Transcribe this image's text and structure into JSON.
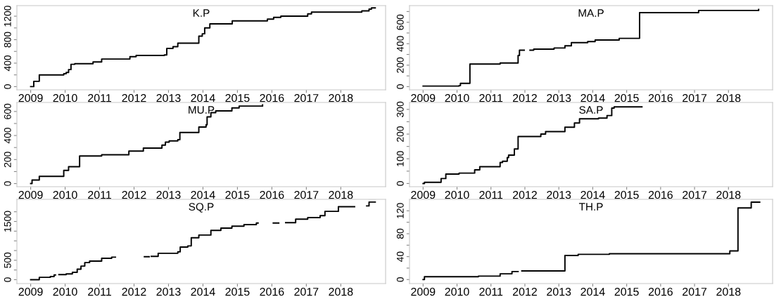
{
  "chart_data": [
    {
      "type": "step",
      "title": "K.P",
      "color": "#000000",
      "xlim": [
        2008.6,
        2019.3
      ],
      "xticks": [
        2009,
        2010,
        2011,
        2012,
        2013,
        2014,
        2015,
        2016,
        2017,
        2018
      ],
      "ylim": [
        -55,
        1380
      ],
      "yticks": [
        0,
        {
          "value": 200,
          "label": null
        },
        400,
        {
          "value": 600,
          "label": null
        },
        800,
        {
          "value": 1000,
          "label": null
        },
        1200
      ],
      "grid": false,
      "legend": false,
      "x": [
        2009.0,
        2009.09,
        2009.25,
        2009.96,
        2010.03,
        2010.1,
        2010.17,
        2010.28,
        2010.81,
        2011.06,
        2011.88,
        2012.06,
        2012.88,
        2012.95,
        2013.13,
        2013.27,
        2013.88,
        2013.98,
        2014.05,
        2014.2,
        2014.85,
        2015.87,
        2016.05,
        2016.26,
        2017.04,
        2017.15,
        2018.61,
        2018.82,
        2018.89,
        2019.0
      ],
      "values": [
        0,
        90,
        200,
        220,
        240,
        290,
        380,
        390,
        420,
        470,
        510,
        530,
        540,
        650,
        680,
        740,
        860,
        900,
        1000,
        1070,
        1120,
        1150,
        1180,
        1200,
        1240,
        1270,
        1290,
        1320,
        1340,
        1340
      ]
    },
    {
      "type": "step",
      "title": "MA.P",
      "color": "#000000",
      "xlim": [
        2008.6,
        2019.3
      ],
      "xticks": [
        2009,
        2010,
        2011,
        2012,
        2013,
        2014,
        2015,
        2016,
        2017,
        2018
      ],
      "ylim": [
        -30,
        755
      ],
      "yticks": [
        0,
        {
          "value": 100,
          "label": null
        },
        200,
        {
          "value": 300,
          "label": null
        },
        400,
        {
          "value": 500,
          "label": null
        },
        600,
        {
          "value": 700,
          "label": null
        }
      ],
      "grid": false,
      "legend": false,
      "x": [
        2009.0,
        2010.06,
        2010.1,
        2010.38,
        2011.27,
        2011.8,
        2011.84,
        2011.98,
        2012.15,
        2012.26,
        2012.86,
        2013.18,
        2013.37,
        2013.85,
        2014.07,
        2014.78,
        2015.38,
        2017.12,
        2018.89
      ],
      "values": [
        5,
        10,
        30,
        210,
        220,
        290,
        340,
        null,
        340,
        350,
        360,
        380,
        410,
        420,
        435,
        450,
        690,
        710,
        720
      ]
    },
    {
      "type": "step",
      "title": "MU.P",
      "color": "#000000",
      "xlim": [
        2008.6,
        2019.3
      ],
      "xticks": [
        2009,
        2010,
        2011,
        2012,
        2013,
        2014,
        2015,
        2016,
        2017,
        2018
      ],
      "ylim": [
        -26,
        675
      ],
      "yticks": [
        0,
        {
          "value": 100,
          "label": null
        },
        200,
        {
          "value": 300,
          "label": null
        },
        400,
        {
          "value": 500,
          "label": null
        },
        600
      ],
      "grid": false,
      "legend": false,
      "x": [
        2009.0,
        2009.04,
        2009.25,
        2009.96,
        2010.1,
        2010.42,
        2011.06,
        2011.85,
        2012.27,
        2012.81,
        2012.91,
        2013.02,
        2013.27,
        2013.33,
        2013.88,
        2014.09,
        2014.12,
        2014.23,
        2014.37,
        2014.84,
        2015.05,
        2015.73
      ],
      "values": [
        0,
        30,
        60,
        110,
        140,
        230,
        240,
        270,
        295,
        320,
        345,
        355,
        365,
        425,
        470,
        490,
        555,
        590,
        605,
        630,
        645,
        655
      ]
    },
    {
      "type": "step",
      "title": "SA.P",
      "color": "#000000",
      "xlim": [
        2008.6,
        2019.3
      ],
      "xticks": [
        2009,
        2010,
        2011,
        2012,
        2013,
        2014,
        2015,
        2016,
        2017,
        2018
      ],
      "ylim": [
        -13,
        328
      ],
      "yticks": [
        0,
        {
          "value": 50,
          "label": null
        },
        100,
        {
          "value": 150,
          "label": null
        },
        200,
        {
          "value": 250,
          "label": null
        },
        300
      ],
      "grid": false,
      "legend": false,
      "x": [
        2009.0,
        2009.04,
        2009.53,
        2009.67,
        2010.06,
        2010.52,
        2010.67,
        2011.27,
        2011.34,
        2011.48,
        2011.52,
        2011.69,
        2011.8,
        2012.47,
        2012.61,
        2013.18,
        2013.46,
        2013.61,
        2014.17,
        2014.42,
        2014.56,
        2014.63,
        2015.45
      ],
      "values": [
        0,
        5,
        20,
        38,
        42,
        55,
        68,
        85,
        90,
        105,
        115,
        140,
        190,
        200,
        210,
        228,
        245,
        262,
        265,
        275,
        305,
        310,
        310
      ]
    },
    {
      "type": "step",
      "title": "SQ.P",
      "color": "#000000",
      "xlim": [
        2008.6,
        2019.3
      ],
      "xticks": [
        2009,
        2010,
        2011,
        2012,
        2013,
        2014,
        2015,
        2016,
        2017,
        2018
      ],
      "ylim": [
        -100,
        2070
      ],
      "yticks": [
        0,
        {
          "value": 250,
          "label": null
        },
        500,
        {
          "value": 750,
          "label": null
        },
        {
          "value": 1000,
          "label": null
        },
        {
          "value": 1250,
          "label": null
        },
        1500,
        {
          "value": 1750,
          "label": null
        }
      ],
      "grid": false,
      "legend": false,
      "x": [
        2009.0,
        2009.25,
        2009.57,
        2009.68,
        2009.72,
        2009.82,
        2010.03,
        2010.21,
        2010.35,
        2010.46,
        2010.57,
        2010.71,
        2011.06,
        2011.35,
        2011.46,
        2012.3,
        2012.44,
        2012.5,
        2012.7,
        2013.27,
        2013.34,
        2013.56,
        2013.66,
        2013.88,
        2014.23,
        2014.52,
        2014.84,
        2015.19,
        2015.55,
        2015.6,
        2016.04,
        2016.2,
        2016.4,
        2016.69,
        2017.04,
        2017.4,
        2017.54,
        2017.93,
        2018.36,
        2018.4,
        2018.75,
        2018.82,
        2019.0
      ],
      "values": [
        0,
        60,
        80,
        120,
        null,
        130,
        150,
        190,
        270,
        350,
        440,
        480,
        550,
        580,
        null,
        590,
        null,
        600,
        680,
        720,
        840,
        870,
        1080,
        1150,
        1270,
        1330,
        1380,
        1420,
        1460,
        null,
        1460,
        null,
        1470,
        1560,
        1600,
        1650,
        1760,
        1880,
        1880,
        null,
        1900,
        2000,
        2000
      ]
    },
    {
      "type": "step",
      "title": "TH.P",
      "color": "#000000",
      "xlim": [
        2008.6,
        2019.3
      ],
      "xticks": [
        2009,
        2010,
        2011,
        2012,
        2013,
        2014,
        2015,
        2016,
        2017,
        2018
      ],
      "ylim": [
        -7,
        140
      ],
      "yticks": [
        0,
        {
          "value": 20,
          "label": null
        },
        40,
        {
          "value": 60,
          "label": null
        },
        80,
        {
          "value": 100,
          "label": null
        },
        120
      ],
      "grid": false,
      "legend": false,
      "x": [
        2009.0,
        2009.04,
        2010.63,
        2011.27,
        2011.62,
        2011.8,
        2011.91,
        2013.18,
        2013.57,
        2014.49,
        2018.04,
        2018.28,
        2018.67,
        2018.92
      ],
      "values": [
        0,
        5,
        6,
        10,
        14,
        null,
        15,
        42,
        44,
        45,
        50,
        125,
        135,
        135
      ]
    }
  ]
}
